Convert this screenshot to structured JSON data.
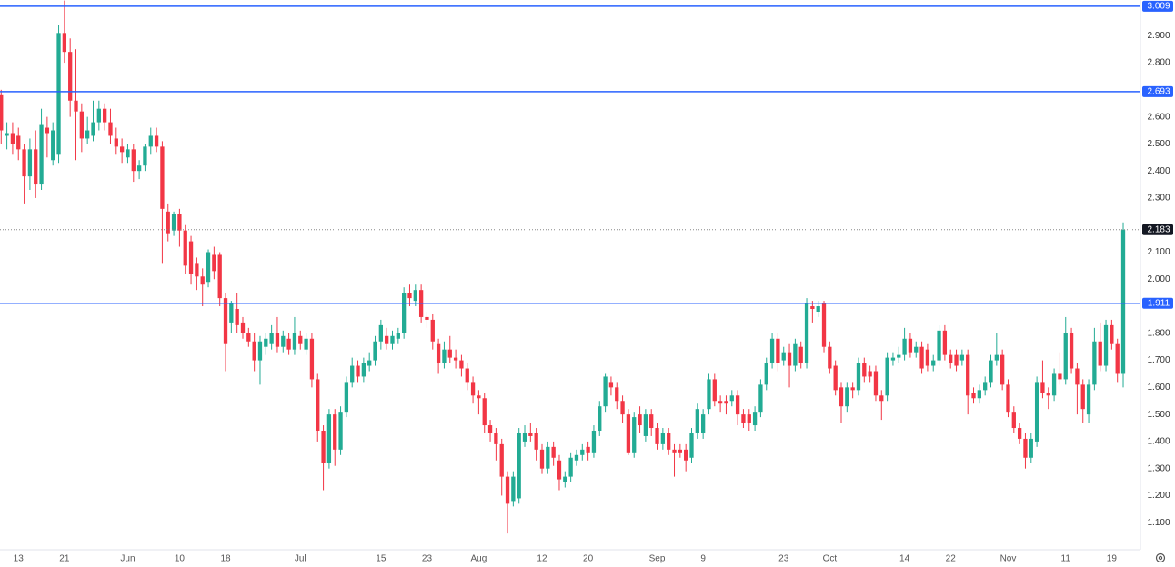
{
  "chart_data": {
    "type": "candlestick",
    "up_color": "#22ab94",
    "down_color": "#f23645",
    "ylim": [
      1.0,
      3.032
    ],
    "yticks": [
      {
        "value": 1.1,
        "label": "1.100"
      },
      {
        "value": 1.2,
        "label": "1.200"
      },
      {
        "value": 1.3,
        "label": "1.300"
      },
      {
        "value": 1.4,
        "label": "1.400"
      },
      {
        "value": 1.5,
        "label": "1.500"
      },
      {
        "value": 1.6,
        "label": "1.600"
      },
      {
        "value": 1.7,
        "label": "1.700"
      },
      {
        "value": 1.8,
        "label": "1.800"
      },
      {
        "value": 1.9,
        "label": "1.900"
      },
      {
        "value": 2.0,
        "label": "2.000"
      },
      {
        "value": 2.1,
        "label": "2.100"
      },
      {
        "value": 2.3,
        "label": "2.300"
      },
      {
        "value": 2.4,
        "label": "2.400"
      },
      {
        "value": 2.5,
        "label": "2.500"
      },
      {
        "value": 2.6,
        "label": "2.600"
      },
      {
        "value": 2.8,
        "label": "2.800"
      },
      {
        "value": 2.9,
        "label": "2.900"
      }
    ],
    "xlim": [
      -0.2,
      198
    ],
    "xticks": [
      {
        "value": 3,
        "label": "13"
      },
      {
        "value": 11,
        "label": "21"
      },
      {
        "value": 22,
        "label": "Jun"
      },
      {
        "value": 31,
        "label": "10"
      },
      {
        "value": 39,
        "label": "18"
      },
      {
        "value": 52,
        "label": "Jul"
      },
      {
        "value": 66,
        "label": "15"
      },
      {
        "value": 74,
        "label": "23"
      },
      {
        "value": 83,
        "label": "Aug"
      },
      {
        "value": 94,
        "label": "12"
      },
      {
        "value": 102,
        "label": "20"
      },
      {
        "value": 114,
        "label": "Sep"
      },
      {
        "value": 122,
        "label": "9"
      },
      {
        "value": 136,
        "label": "23"
      },
      {
        "value": 144,
        "label": "Oct"
      },
      {
        "value": 157,
        "label": "14"
      },
      {
        "value": 165,
        "label": "22"
      },
      {
        "value": 175,
        "label": "Nov"
      },
      {
        "value": 185,
        "label": "11"
      },
      {
        "value": 193,
        "label": "19"
      }
    ],
    "levels": [
      {
        "value": 3.009,
        "label": "3.009",
        "color": "#2962ff"
      },
      {
        "value": 2.693,
        "label": "2.693",
        "color": "#2962ff"
      },
      {
        "value": 1.911,
        "label": "1.911",
        "color": "#2962ff"
      }
    ],
    "last_price": {
      "value": 2.183,
      "label": "2.183"
    },
    "ohlc": [
      [
        2.68,
        2.7,
        2.5,
        2.55
      ],
      [
        2.53,
        2.58,
        2.48,
        2.54
      ],
      [
        2.54,
        2.58,
        2.46,
        2.5
      ],
      [
        2.53,
        2.56,
        2.44,
        2.48
      ],
      [
        2.48,
        2.5,
        2.28,
        2.38
      ],
      [
        2.38,
        2.52,
        2.33,
        2.48
      ],
      [
        2.48,
        2.55,
        2.3,
        2.35
      ],
      [
        2.35,
        2.63,
        2.33,
        2.57
      ],
      [
        2.56,
        2.6,
        2.45,
        2.54
      ],
      [
        2.44,
        2.58,
        2.42,
        2.55
      ],
      [
        2.46,
        2.94,
        2.43,
        2.91
      ],
      [
        2.91,
        3.03,
        2.8,
        2.84
      ],
      [
        2.84,
        2.89,
        2.6,
        2.66
      ],
      [
        2.66,
        2.85,
        2.44,
        2.62
      ],
      [
        2.62,
        2.65,
        2.47,
        2.52
      ],
      [
        2.52,
        2.6,
        2.5,
        2.55
      ],
      [
        2.53,
        2.66,
        2.51,
        2.58
      ],
      [
        2.58,
        2.66,
        2.55,
        2.63
      ],
      [
        2.63,
        2.65,
        2.55,
        2.58
      ],
      [
        2.58,
        2.63,
        2.5,
        2.53
      ],
      [
        2.52,
        2.56,
        2.46,
        2.49
      ],
      [
        2.49,
        2.52,
        2.43,
        2.47
      ],
      [
        2.45,
        2.5,
        2.43,
        2.48
      ],
      [
        2.48,
        2.5,
        2.36,
        2.4
      ],
      [
        2.4,
        2.44,
        2.37,
        2.42
      ],
      [
        2.42,
        2.5,
        2.4,
        2.49
      ],
      [
        2.49,
        2.56,
        2.46,
        2.53
      ],
      [
        2.53,
        2.56,
        2.47,
        2.49
      ],
      [
        2.49,
        2.51,
        2.06,
        2.26
      ],
      [
        2.25,
        2.28,
        2.14,
        2.17
      ],
      [
        2.18,
        2.25,
        2.16,
        2.24
      ],
      [
        2.24,
        2.26,
        2.12,
        2.18
      ],
      [
        2.18,
        2.2,
        2.02,
        2.05
      ],
      [
        2.14,
        2.16,
        1.98,
        2.02
      ],
      [
        2.06,
        2.08,
        1.96,
        2.01
      ],
      [
        2.01,
        2.04,
        1.9,
        1.98
      ],
      [
        1.99,
        2.11,
        1.97,
        2.1
      ],
      [
        2.09,
        2.12,
        2.0,
        2.03
      ],
      [
        2.09,
        2.1,
        1.9,
        1.93
      ],
      [
        1.93,
        1.95,
        1.66,
        1.76
      ],
      [
        1.84,
        1.92,
        1.8,
        1.91
      ],
      [
        1.89,
        1.95,
        1.8,
        1.83
      ],
      [
        1.84,
        1.86,
        1.78,
        1.8
      ],
      [
        1.8,
        1.82,
        1.75,
        1.77
      ],
      [
        1.77,
        1.8,
        1.66,
        1.7
      ],
      [
        1.7,
        1.79,
        1.61,
        1.77
      ],
      [
        1.75,
        1.8,
        1.72,
        1.78
      ],
      [
        1.76,
        1.83,
        1.74,
        1.8
      ],
      [
        1.8,
        1.86,
        1.73,
        1.75
      ],
      [
        1.75,
        1.81,
        1.73,
        1.79
      ],
      [
        1.78,
        1.8,
        1.72,
        1.74
      ],
      [
        1.74,
        1.86,
        1.72,
        1.8
      ],
      [
        1.79,
        1.81,
        1.74,
        1.76
      ],
      [
        1.74,
        1.8,
        1.72,
        1.78
      ],
      [
        1.78,
        1.8,
        1.6,
        1.63
      ],
      [
        1.63,
        1.65,
        1.4,
        1.44
      ],
      [
        1.44,
        1.46,
        1.22,
        1.32
      ],
      [
        1.32,
        1.52,
        1.3,
        1.5
      ],
      [
        1.5,
        1.52,
        1.31,
        1.37
      ],
      [
        1.37,
        1.53,
        1.35,
        1.51
      ],
      [
        1.51,
        1.64,
        1.49,
        1.62
      ],
      [
        1.62,
        1.71,
        1.6,
        1.68
      ],
      [
        1.68,
        1.7,
        1.62,
        1.64
      ],
      [
        1.64,
        1.71,
        1.62,
        1.69
      ],
      [
        1.68,
        1.73,
        1.66,
        1.7
      ],
      [
        1.7,
        1.79,
        1.68,
        1.77
      ],
      [
        1.77,
        1.85,
        1.74,
        1.83
      ],
      [
        1.79,
        1.82,
        1.74,
        1.76
      ],
      [
        1.76,
        1.81,
        1.74,
        1.79
      ],
      [
        1.78,
        1.82,
        1.76,
        1.8
      ],
      [
        1.8,
        1.97,
        1.78,
        1.95
      ],
      [
        1.95,
        1.98,
        1.9,
        1.93
      ],
      [
        1.92,
        1.98,
        1.9,
        1.96
      ],
      [
        1.96,
        1.98,
        1.84,
        1.86
      ],
      [
        1.86,
        1.88,
        1.82,
        1.85
      ],
      [
        1.85,
        1.87,
        1.74,
        1.77
      ],
      [
        1.76,
        1.78,
        1.65,
        1.69
      ],
      [
        1.69,
        1.77,
        1.67,
        1.74
      ],
      [
        1.74,
        1.79,
        1.69,
        1.71
      ],
      [
        1.71,
        1.74,
        1.67,
        1.7
      ],
      [
        1.7,
        1.72,
        1.64,
        1.67
      ],
      [
        1.67,
        1.69,
        1.59,
        1.62
      ],
      [
        1.62,
        1.64,
        1.54,
        1.57
      ],
      [
        1.57,
        1.59,
        1.5,
        1.56
      ],
      [
        1.56,
        1.58,
        1.43,
        1.46
      ],
      [
        1.46,
        1.48,
        1.4,
        1.43
      ],
      [
        1.43,
        1.45,
        1.33,
        1.39
      ],
      [
        1.39,
        1.41,
        1.2,
        1.27
      ],
      [
        1.27,
        1.29,
        1.06,
        1.17
      ],
      [
        1.18,
        1.29,
        1.16,
        1.27
      ],
      [
        1.19,
        1.45,
        1.17,
        1.43
      ],
      [
        1.4,
        1.46,
        1.38,
        1.43
      ],
      [
        1.43,
        1.47,
        1.4,
        1.42
      ],
      [
        1.43,
        1.45,
        1.33,
        1.37
      ],
      [
        1.37,
        1.39,
        1.28,
        1.3
      ],
      [
        1.3,
        1.4,
        1.28,
        1.38
      ],
      [
        1.38,
        1.4,
        1.31,
        1.34
      ],
      [
        1.33,
        1.35,
        1.22,
        1.26
      ],
      [
        1.25,
        1.29,
        1.23,
        1.27
      ],
      [
        1.27,
        1.36,
        1.25,
        1.34
      ],
      [
        1.33,
        1.37,
        1.31,
        1.35
      ],
      [
        1.35,
        1.39,
        1.33,
        1.37
      ],
      [
        1.38,
        1.4,
        1.33,
        1.36
      ],
      [
        1.36,
        1.46,
        1.34,
        1.44
      ],
      [
        1.44,
        1.55,
        1.42,
        1.53
      ],
      [
        1.53,
        1.65,
        1.51,
        1.64
      ],
      [
        1.62,
        1.64,
        1.57,
        1.6
      ],
      [
        1.6,
        1.62,
        1.52,
        1.55
      ],
      [
        1.55,
        1.57,
        1.47,
        1.5
      ],
      [
        1.5,
        1.52,
        1.35,
        1.36
      ],
      [
        1.36,
        1.51,
        1.34,
        1.49
      ],
      [
        1.5,
        1.53,
        1.43,
        1.46
      ],
      [
        1.42,
        1.52,
        1.4,
        1.5
      ],
      [
        1.5,
        1.52,
        1.42,
        1.45
      ],
      [
        1.45,
        1.47,
        1.37,
        1.39
      ],
      [
        1.39,
        1.45,
        1.37,
        1.43
      ],
      [
        1.43,
        1.45,
        1.35,
        1.37
      ],
      [
        1.37,
        1.39,
        1.27,
        1.36
      ],
      [
        1.37,
        1.39,
        1.34,
        1.36
      ],
      [
        1.37,
        1.39,
        1.29,
        1.33
      ],
      [
        1.34,
        1.45,
        1.32,
        1.43
      ],
      [
        1.43,
        1.54,
        1.41,
        1.52
      ],
      [
        1.43,
        1.52,
        1.41,
        1.5
      ],
      [
        1.52,
        1.65,
        1.5,
        1.63
      ],
      [
        1.63,
        1.65,
        1.53,
        1.55
      ],
      [
        1.55,
        1.57,
        1.51,
        1.54
      ],
      [
        1.55,
        1.57,
        1.5,
        1.54
      ],
      [
        1.55,
        1.59,
        1.53,
        1.57
      ],
      [
        1.57,
        1.59,
        1.46,
        1.5
      ],
      [
        1.5,
        1.52,
        1.45,
        1.47
      ],
      [
        1.5,
        1.52,
        1.44,
        1.47
      ],
      [
        1.46,
        1.53,
        1.44,
        1.51
      ],
      [
        1.51,
        1.63,
        1.49,
        1.61
      ],
      [
        1.61,
        1.71,
        1.59,
        1.69
      ],
      [
        1.69,
        1.8,
        1.67,
        1.78
      ],
      [
        1.78,
        1.8,
        1.66,
        1.69
      ],
      [
        1.7,
        1.75,
        1.68,
        1.73
      ],
      [
        1.73,
        1.76,
        1.6,
        1.68
      ],
      [
        1.68,
        1.78,
        1.66,
        1.76
      ],
      [
        1.75,
        1.77,
        1.67,
        1.69
      ],
      [
        1.69,
        1.93,
        1.67,
        1.91
      ],
      [
        1.9,
        1.92,
        1.84,
        1.89
      ],
      [
        1.88,
        1.92,
        1.86,
        1.9
      ],
      [
        1.91,
        1.92,
        1.73,
        1.75
      ],
      [
        1.75,
        1.77,
        1.65,
        1.67
      ],
      [
        1.68,
        1.7,
        1.57,
        1.59
      ],
      [
        1.6,
        1.62,
        1.47,
        1.53
      ],
      [
        1.53,
        1.62,
        1.51,
        1.6
      ],
      [
        1.6,
        1.62,
        1.56,
        1.59
      ],
      [
        1.59,
        1.71,
        1.57,
        1.69
      ],
      [
        1.69,
        1.71,
        1.62,
        1.64
      ],
      [
        1.66,
        1.68,
        1.62,
        1.64
      ],
      [
        1.66,
        1.68,
        1.55,
        1.57
      ],
      [
        1.57,
        1.59,
        1.48,
        1.55
      ],
      [
        1.57,
        1.73,
        1.55,
        1.71
      ],
      [
        1.7,
        1.73,
        1.68,
        1.71
      ],
      [
        1.71,
        1.75,
        1.69,
        1.72
      ],
      [
        1.72,
        1.82,
        1.7,
        1.78
      ],
      [
        1.78,
        1.8,
        1.71,
        1.73
      ],
      [
        1.73,
        1.77,
        1.71,
        1.75
      ],
      [
        1.75,
        1.77,
        1.65,
        1.67
      ],
      [
        1.74,
        1.76,
        1.66,
        1.68
      ],
      [
        1.68,
        1.72,
        1.66,
        1.7
      ],
      [
        1.7,
        1.83,
        1.68,
        1.81
      ],
      [
        1.81,
        1.83,
        1.7,
        1.72
      ],
      [
        1.72,
        1.74,
        1.67,
        1.69
      ],
      [
        1.72,
        1.74,
        1.66,
        1.68
      ],
      [
        1.7,
        1.74,
        1.68,
        1.72
      ],
      [
        1.72,
        1.74,
        1.5,
        1.57
      ],
      [
        1.58,
        1.6,
        1.54,
        1.56
      ],
      [
        1.56,
        1.61,
        1.54,
        1.59
      ],
      [
        1.59,
        1.64,
        1.57,
        1.62
      ],
      [
        1.62,
        1.72,
        1.6,
        1.7
      ],
      [
        1.7,
        1.8,
        1.68,
        1.72
      ],
      [
        1.72,
        1.74,
        1.59,
        1.61
      ],
      [
        1.61,
        1.63,
        1.49,
        1.51
      ],
      [
        1.51,
        1.53,
        1.43,
        1.45
      ],
      [
        1.45,
        1.47,
        1.39,
        1.41
      ],
      [
        1.41,
        1.43,
        1.3,
        1.34
      ],
      [
        1.34,
        1.43,
        1.32,
        1.41
      ],
      [
        1.4,
        1.64,
        1.38,
        1.62
      ],
      [
        1.62,
        1.7,
        1.56,
        1.58
      ],
      [
        1.58,
        1.6,
        1.52,
        1.57
      ],
      [
        1.57,
        1.67,
        1.55,
        1.65
      ],
      [
        1.65,
        1.73,
        1.61,
        1.63
      ],
      [
        1.63,
        1.86,
        1.61,
        1.8
      ],
      [
        1.8,
        1.82,
        1.65,
        1.67
      ],
      [
        1.67,
        1.69,
        1.5,
        1.61
      ],
      [
        1.61,
        1.63,
        1.47,
        1.52
      ],
      [
        1.5,
        1.63,
        1.47,
        1.61
      ],
      [
        1.61,
        1.82,
        1.59,
        1.77
      ],
      [
        1.77,
        1.84,
        1.66,
        1.68
      ],
      [
        1.68,
        1.85,
        1.66,
        1.83
      ],
      [
        1.83,
        1.85,
        1.74,
        1.76
      ],
      [
        1.76,
        1.78,
        1.62,
        1.65
      ],
      [
        1.65,
        2.21,
        1.6,
        2.183
      ]
    ]
  }
}
